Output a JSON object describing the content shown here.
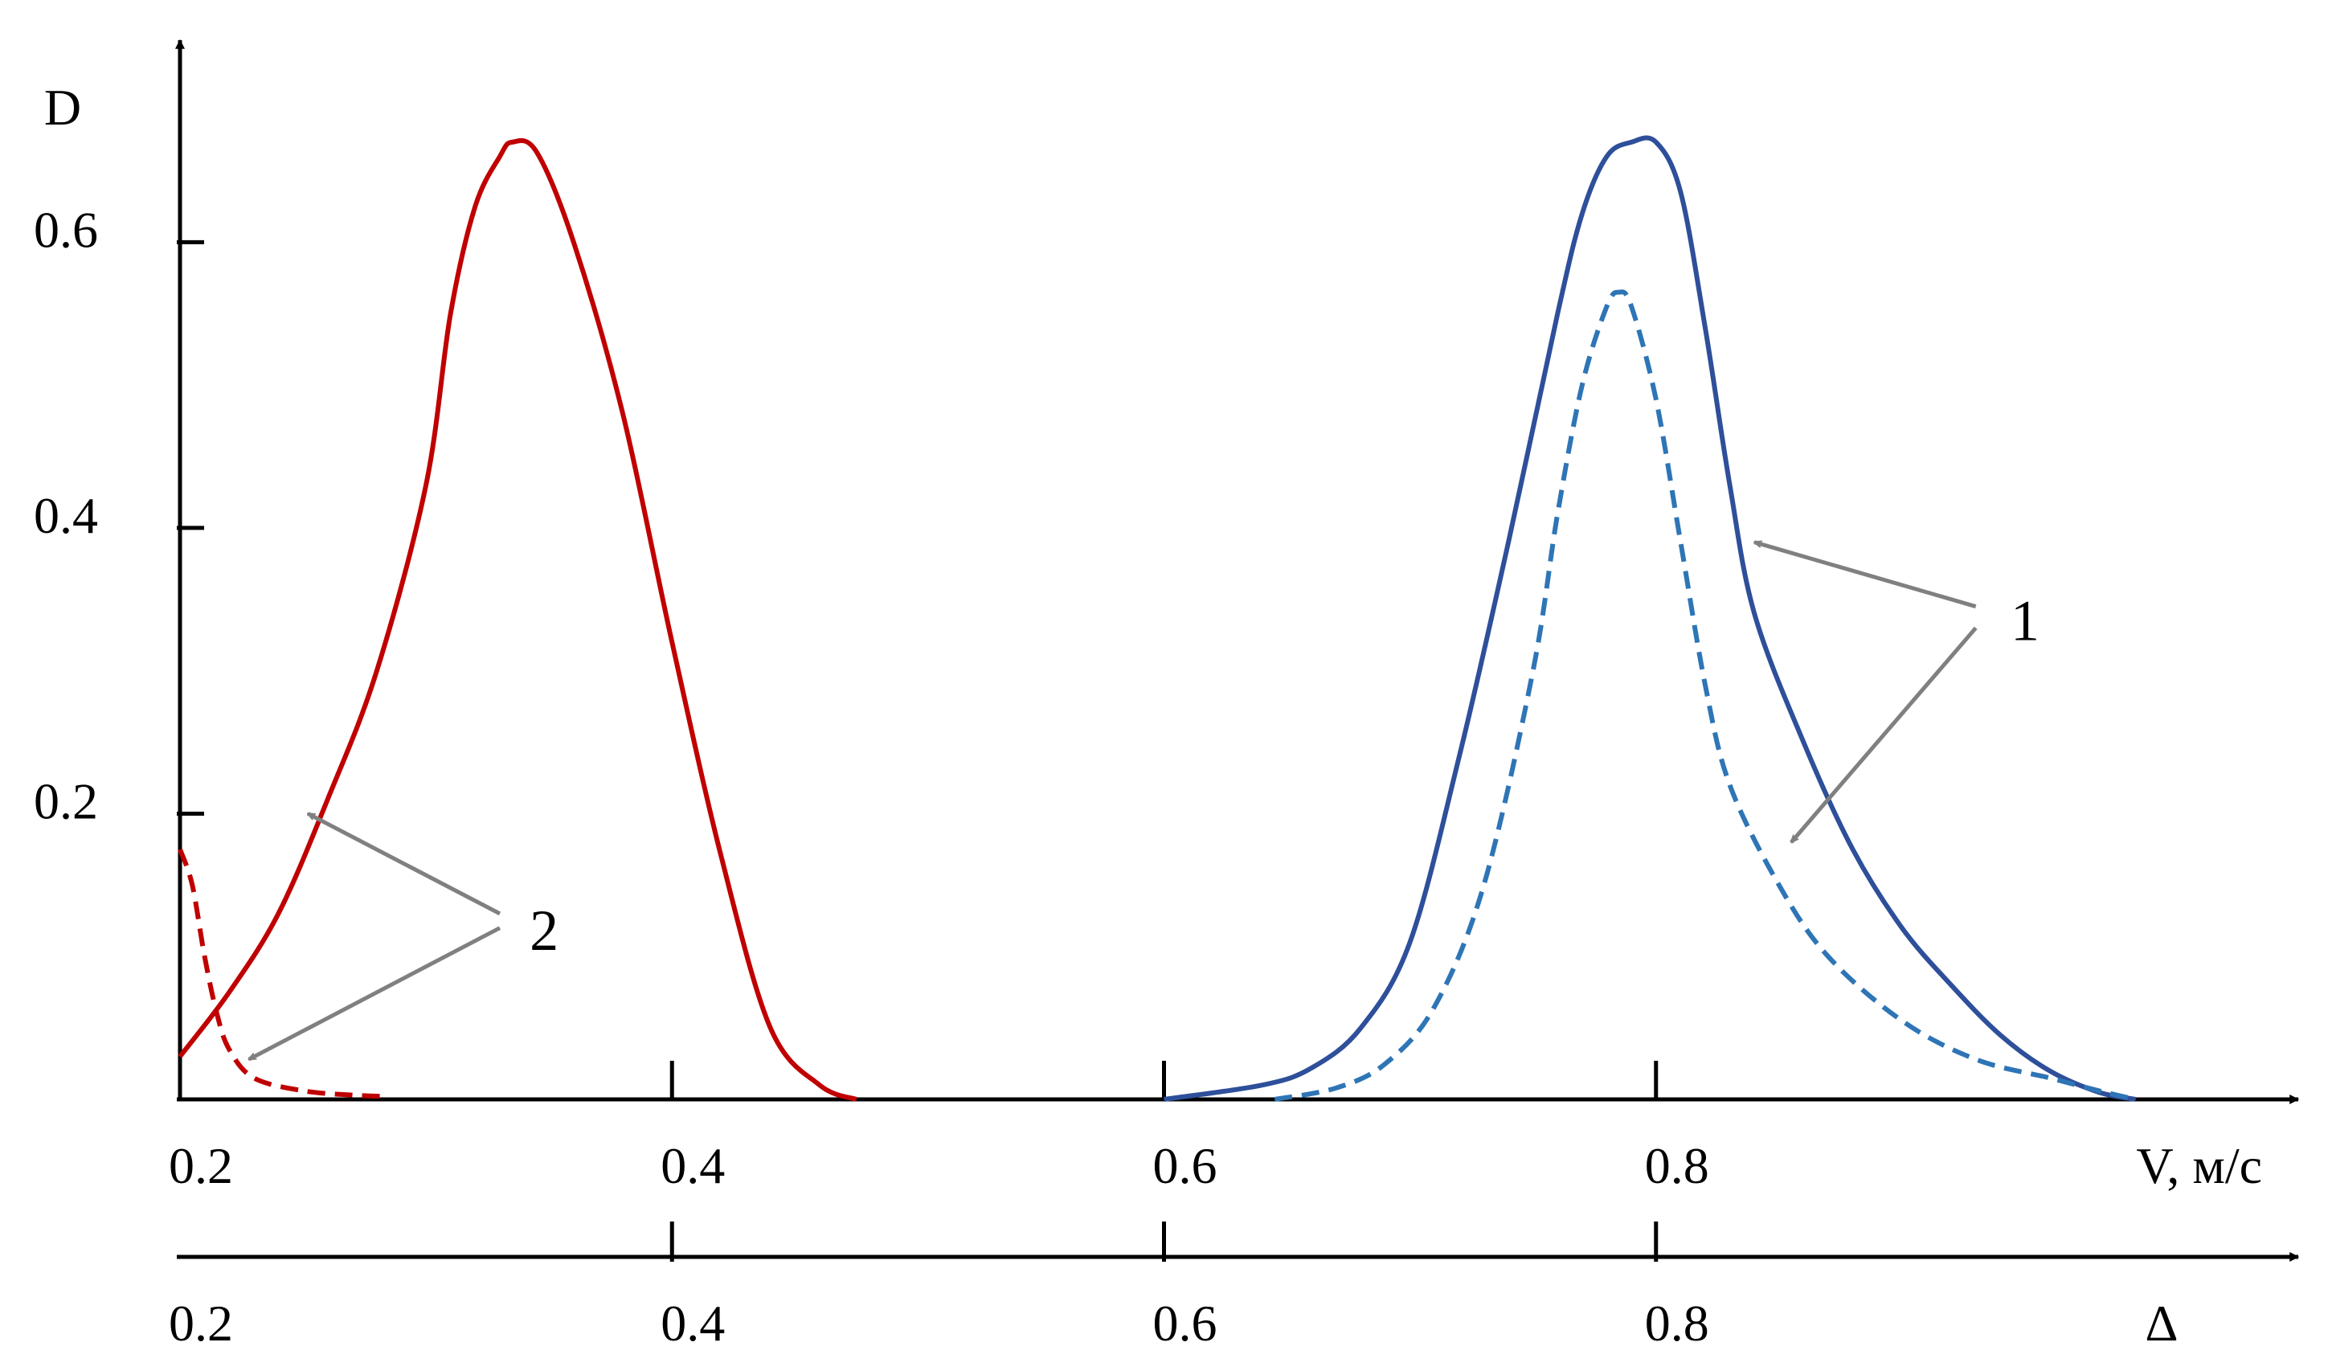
{
  "chart_data": {
    "type": "line",
    "ylabel": "D",
    "xlabel": "V, м/с",
    "x2label": "Δ",
    "xlim": [
      0.2,
      1.0
    ],
    "ylim": [
      0,
      0.675
    ],
    "xticks": [
      0.2,
      0.4,
      0.6,
      0.8
    ],
    "xtick_labels": [
      "0.2",
      "0.4",
      "0.6",
      "0.8"
    ],
    "x2ticks": [
      0.2,
      0.4,
      0.6,
      0.8
    ],
    "x2tick_labels": [
      "0.2",
      "0.4",
      "0.6",
      "0.8"
    ],
    "yticks": [
      0.2,
      0.4,
      0.6
    ],
    "ytick_labels": [
      "0.2",
      "0.4",
      "0.6"
    ],
    "grid": false,
    "series": [
      {
        "color": "#c00000",
        "dash": "solid",
        "points": [
          [
            0.2,
            0.03
          ],
          [
            0.22,
            0.075
          ],
          [
            0.24,
            0.13
          ],
          [
            0.26,
            0.21
          ],
          [
            0.28,
            0.3
          ],
          [
            0.3,
            0.43
          ],
          [
            0.31,
            0.55
          ],
          [
            0.32,
            0.625
          ],
          [
            0.33,
            0.66
          ],
          [
            0.335,
            0.67
          ],
          [
            0.345,
            0.663
          ],
          [
            0.36,
            0.6
          ],
          [
            0.38,
            0.48
          ],
          [
            0.4,
            0.32
          ],
          [
            0.42,
            0.17
          ],
          [
            0.44,
            0.05
          ],
          [
            0.46,
            0.01
          ],
          [
            0.475,
            0.0
          ]
        ]
      },
      {
        "color": "#c00000",
        "dash": "dashed",
        "points": [
          [
            0.2,
            0.175
          ],
          [
            0.205,
            0.15
          ],
          [
            0.21,
            0.1
          ],
          [
            0.215,
            0.06
          ],
          [
            0.22,
            0.035
          ],
          [
            0.23,
            0.015
          ],
          [
            0.25,
            0.006
          ],
          [
            0.27,
            0.003
          ],
          [
            0.283,
            0.002
          ]
        ]
      },
      {
        "color": "#2e4f9a",
        "dash": "solid",
        "points": [
          [
            0.6,
            0.0
          ],
          [
            0.64,
            0.01
          ],
          [
            0.66,
            0.022
          ],
          [
            0.68,
            0.05
          ],
          [
            0.7,
            0.11
          ],
          [
            0.72,
            0.24
          ],
          [
            0.74,
            0.39
          ],
          [
            0.76,
            0.55
          ],
          [
            0.77,
            0.62
          ],
          [
            0.78,
            0.66
          ],
          [
            0.79,
            0.67
          ],
          [
            0.8,
            0.67
          ],
          [
            0.81,
            0.635
          ],
          [
            0.82,
            0.54
          ],
          [
            0.83,
            0.43
          ],
          [
            0.84,
            0.34
          ],
          [
            0.86,
            0.25
          ],
          [
            0.88,
            0.175
          ],
          [
            0.9,
            0.12
          ],
          [
            0.92,
            0.08
          ],
          [
            0.94,
            0.045
          ],
          [
            0.96,
            0.02
          ],
          [
            0.98,
            0.005
          ],
          [
            0.995,
            0.0
          ]
        ]
      },
      {
        "color": "#2e75b6",
        "dash": "dashed",
        "points": [
          [
            0.645,
            0.0
          ],
          [
            0.67,
            0.008
          ],
          [
            0.69,
            0.025
          ],
          [
            0.71,
            0.065
          ],
          [
            0.73,
            0.15
          ],
          [
            0.75,
            0.3
          ],
          [
            0.76,
            0.41
          ],
          [
            0.77,
            0.5
          ],
          [
            0.78,
            0.555
          ],
          [
            0.785,
            0.565
          ],
          [
            0.79,
            0.555
          ],
          [
            0.8,
            0.49
          ],
          [
            0.81,
            0.39
          ],
          [
            0.82,
            0.29
          ],
          [
            0.83,
            0.22
          ],
          [
            0.85,
            0.15
          ],
          [
            0.87,
            0.1
          ],
          [
            0.9,
            0.055
          ],
          [
            0.93,
            0.028
          ],
          [
            0.96,
            0.015
          ],
          [
            0.98,
            0.006
          ],
          [
            0.995,
            0.0
          ]
        ]
      }
    ],
    "annotations": [
      {
        "text": "1",
        "targets": [
          "series 3",
          "series 4"
        ]
      },
      {
        "text": "2",
        "targets": [
          "series 1",
          "series 2"
        ]
      }
    ]
  },
  "colors": {
    "axis": "#000000",
    "annotation_arrow": "#808080"
  }
}
